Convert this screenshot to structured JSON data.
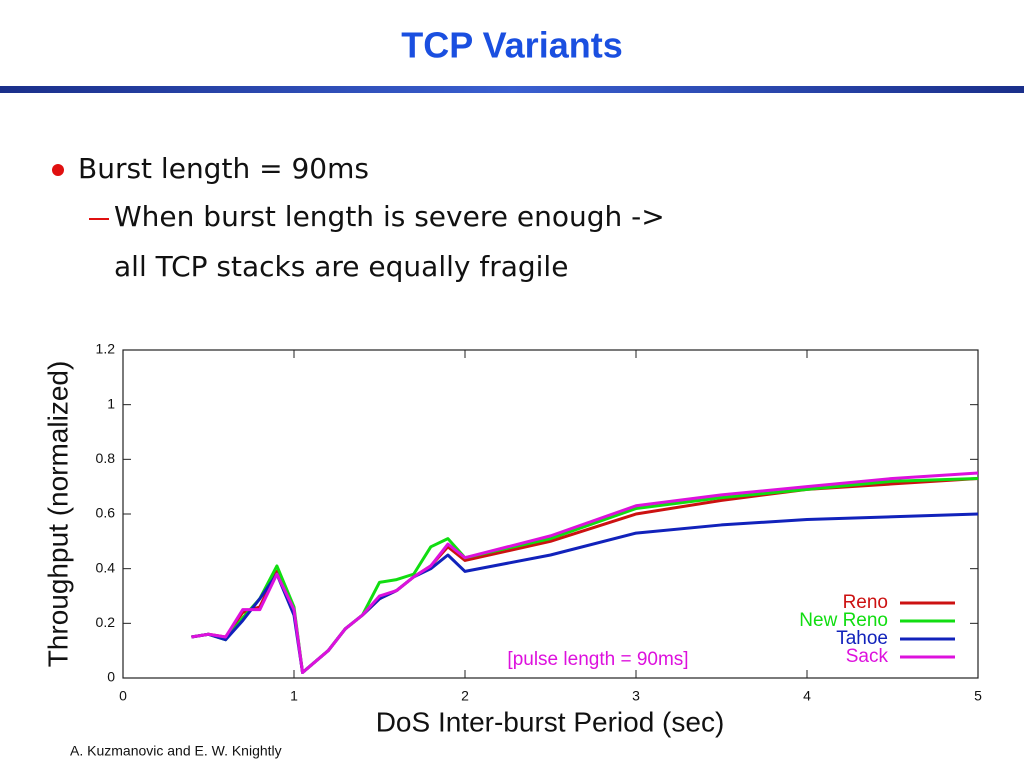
{
  "slide": {
    "title": "TCP Variants",
    "bullet": "Burst length = 90ms",
    "sub_lines": [
      "When burst length is severe enough ->",
      "all TCP stacks are equally fragile"
    ],
    "footer": "A. Kuzmanovic and E. W. Knightly"
  },
  "chart_data": {
    "type": "line",
    "x_label": "DoS Inter-burst Period (sec)",
    "y_label": "Throughput (normalized)",
    "annotation": "[pulse length = 90ms]",
    "xlim": [
      0,
      5
    ],
    "xticks": [
      0,
      1,
      2,
      3,
      4,
      5
    ],
    "ylim": [
      0,
      1.2
    ],
    "yticks": [
      0,
      0.2,
      0.4,
      0.6,
      0.8,
      1,
      1.2
    ],
    "legend": "lower right",
    "x": [
      0.4,
      0.5,
      0.6,
      0.7,
      0.8,
      0.9,
      1.0,
      1.05,
      1.2,
      1.3,
      1.4,
      1.5,
      1.6,
      1.7,
      1.8,
      1.9,
      2.0,
      2.5,
      3,
      3.5,
      4,
      4.5,
      5
    ],
    "series": [
      {
        "name": "Reno",
        "color": "#cc1111",
        "values": [
          0.15,
          0.16,
          0.15,
          0.24,
          0.26,
          0.39,
          0.25,
          0.02,
          0.1,
          0.18,
          0.23,
          0.29,
          0.32,
          0.37,
          0.41,
          0.48,
          0.43,
          0.5,
          0.6,
          0.65,
          0.69,
          0.71,
          0.73
        ]
      },
      {
        "name": "New Reno",
        "color": "#11dd11",
        "values": [
          0.15,
          0.16,
          0.14,
          0.22,
          0.29,
          0.41,
          0.26,
          0.02,
          0.1,
          0.18,
          0.23,
          0.35,
          0.36,
          0.38,
          0.48,
          0.51,
          0.44,
          0.51,
          0.62,
          0.66,
          0.69,
          0.72,
          0.73
        ]
      },
      {
        "name": "Tahoe",
        "color": "#1122bb",
        "values": [
          0.15,
          0.16,
          0.14,
          0.21,
          0.29,
          0.38,
          0.23,
          0.02,
          0.1,
          0.18,
          0.23,
          0.29,
          0.32,
          0.37,
          0.4,
          0.45,
          0.39,
          0.45,
          0.53,
          0.56,
          0.58,
          0.59,
          0.6
        ]
      },
      {
        "name": "Sack",
        "color": "#dd11dd",
        "values": [
          0.15,
          0.16,
          0.15,
          0.25,
          0.25,
          0.38,
          0.25,
          0.02,
          0.1,
          0.18,
          0.23,
          0.3,
          0.32,
          0.37,
          0.41,
          0.49,
          0.44,
          0.52,
          0.63,
          0.67,
          0.7,
          0.73,
          0.75
        ]
      }
    ]
  }
}
